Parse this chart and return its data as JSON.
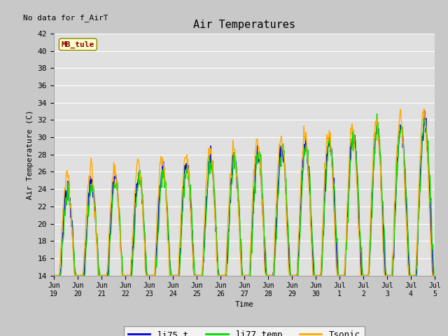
{
  "title": "Air Temperatures",
  "no_data_text": "No data for f_AirT",
  "ylabel": "Air Temperature (C)",
  "xlabel": "Time",
  "station_label": "MB_tule",
  "ylim": [
    14,
    42
  ],
  "series_li75_color": "#0000dd",
  "series_li77_color": "#00dd00",
  "series_tsonic_color": "#ffaa00",
  "series_lw": 1.0,
  "grid_color": "#ffffff",
  "fig_bg_color": "#c8c8c8",
  "ax_bg_color": "#e0e0e0",
  "legend_labels": [
    "li75_t",
    "li77_temp",
    "Tsonic"
  ],
  "xtick_labels": [
    "Jun 20",
    "Jun 21",
    "Jun 22",
    "Jun 23",
    "Jun 24",
    "Jun 25",
    "Jun 26",
    "Jun 27",
    "Jun 28",
    "Jun 29",
    "Jun 30",
    "Jul 1",
    "Jul 2",
    "Jul 3",
    "Jul 4",
    "Jul 5"
  ],
  "yticks": [
    14,
    16,
    18,
    20,
    22,
    24,
    26,
    28,
    30,
    32,
    34,
    36,
    38,
    40,
    42
  ]
}
